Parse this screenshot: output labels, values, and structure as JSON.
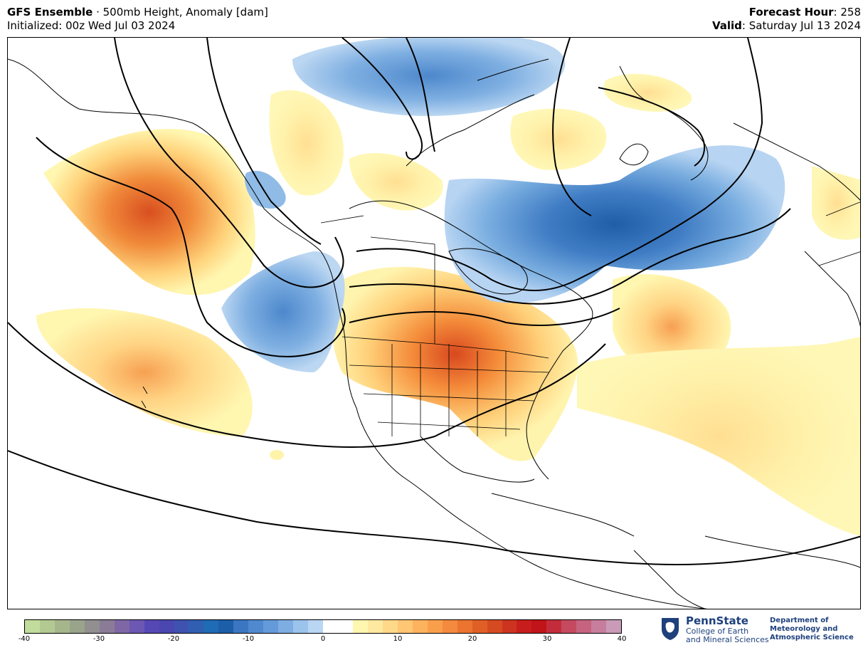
{
  "header": {
    "model": "GFS Ensemble",
    "separator": " · ",
    "product": "500mb Height, Anomaly [dam]",
    "init_label": "Initialized:",
    "init_value": "00z Wed Jul 03 2024",
    "fhour_label": "Forecast Hour",
    "fhour_value": "258",
    "valid_label": "Valid",
    "valid_value": "Saturday Jul 13 2024"
  },
  "colorbar": {
    "ticks": [
      "-40",
      "-30",
      "-20",
      "-10",
      "0",
      "10",
      "20",
      "30",
      "40"
    ],
    "colors": [
      "#c2dc9b",
      "#b3c992",
      "#a6b68c",
      "#9aa48b",
      "#918f8f",
      "#8a7c96",
      "#7f67a5",
      "#6c57b3",
      "#5648b4",
      "#4b47b0",
      "#3f52b0",
      "#305fb2",
      "#1f6bb5",
      "#1d5ea8",
      "#3b76c2",
      "#5089cf",
      "#649ad9",
      "#7eadE2",
      "#9bc3ec",
      "#b9d6f3",
      "#ffffff",
      "#ffffff",
      "#fff6b0",
      "#ffe9a0",
      "#ffd88a",
      "#ffc673",
      "#fdb35e",
      "#f99f4c",
      "#f38a3e",
      "#eb7430",
      "#e05f26",
      "#d64a21",
      "#cc3420",
      "#c71e1d",
      "#c0141a",
      "#c32d3b",
      "#c54a5f",
      "#c66480",
      "#c77e9c",
      "#c99bb8"
    ],
    "colors_semantic": "blue negative anomaly, white neutral, yellow-red positive anomaly"
  },
  "logo": {
    "name": "PennState",
    "line1": "College of Earth",
    "line2": "and Mineral Sciences",
    "dept1": "Department of",
    "dept2": "Meteorology and",
    "dept3": "Atmospheric Science"
  }
}
